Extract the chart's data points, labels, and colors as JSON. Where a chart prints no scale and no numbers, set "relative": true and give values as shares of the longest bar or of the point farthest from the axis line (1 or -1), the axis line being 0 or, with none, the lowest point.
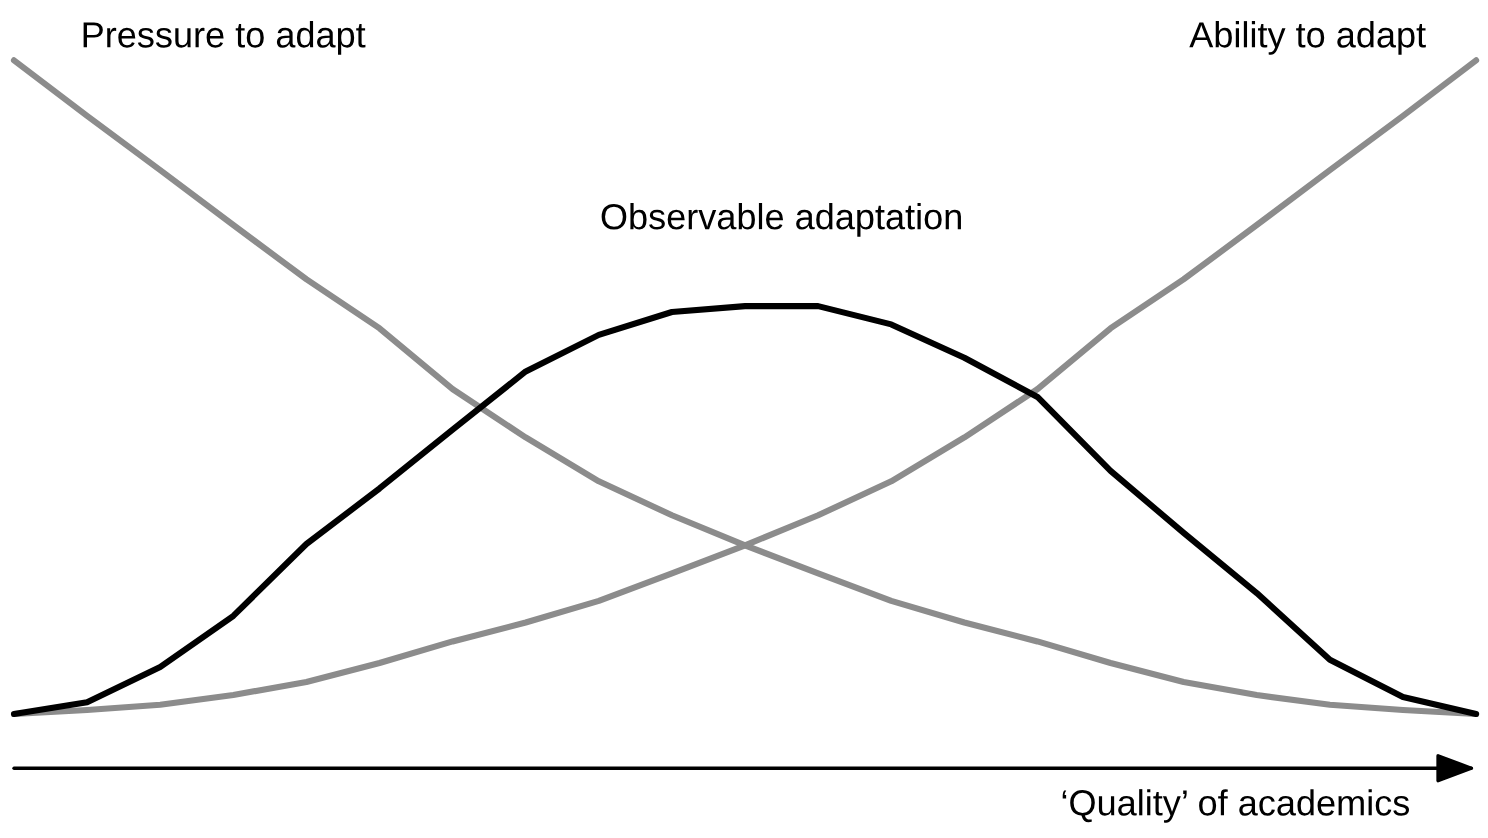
{
  "chart_data": {
    "type": "line",
    "relative": true,
    "xlabel": "‘Quality’ of academics",
    "legend": false,
    "marker": "none",
    "line_style": "solid",
    "categories": [
      null,
      null,
      null,
      null,
      null,
      null,
      null,
      null,
      null,
      null,
      null,
      null,
      null,
      null,
      null,
      null,
      null,
      null,
      null,
      null,
      null
    ],
    "series": [
      {
        "name": "Pressure to adapt",
        "color": "#8c8c8c",
        "values": [
          1.0,
          0.915,
          0.832,
          0.748,
          0.665,
          0.59,
          0.497,
          0.423,
          0.356,
          0.304,
          0.258,
          0.215,
          0.173,
          0.14,
          0.111,
          0.078,
          0.049,
          0.029,
          0.014,
          0.006,
          0
        ]
      },
      {
        "name": "Ability to adapt",
        "color": "#8c8c8c",
        "values": [
          0,
          0.006,
          0.014,
          0.029,
          0.049,
          0.078,
          0.111,
          0.14,
          0.173,
          0.215,
          0.258,
          0.304,
          0.356,
          0.423,
          0.497,
          0.59,
          0.665,
          0.748,
          0.832,
          0.915,
          1.0
        ]
      },
      {
        "name": "Observable adaptation",
        "color": "#000000",
        "values": [
          0,
          0.018,
          0.072,
          0.15,
          0.26,
          0.345,
          0.435,
          0.524,
          0.58,
          0.615,
          0.624,
          0.624,
          0.596,
          0.545,
          0.485,
          0.372,
          0.277,
          0.185,
          0.083,
          0.026,
          0
        ]
      }
    ]
  }
}
